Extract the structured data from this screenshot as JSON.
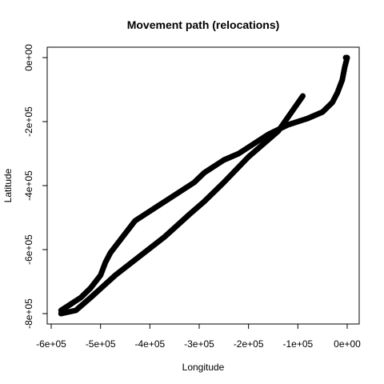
{
  "chart_data": {
    "type": "line",
    "title": "Movement path (relocations)",
    "xlabel": "Longitude",
    "ylabel": "Latitude",
    "xlim": [
      -600000,
      0
    ],
    "ylim": [
      -800000,
      0
    ],
    "x_ticks": [
      {
        "value": -600000,
        "label": "-6e+05"
      },
      {
        "value": -500000,
        "label": "-5e+05"
      },
      {
        "value": -400000,
        "label": "-4e+05"
      },
      {
        "value": -300000,
        "label": "-3e+05"
      },
      {
        "value": -200000,
        "label": "-2e+05"
      },
      {
        "value": -100000,
        "label": "-1e+05"
      },
      {
        "value": 0,
        "label": "0e+00"
      }
    ],
    "y_ticks": [
      {
        "value": 0,
        "label": "0e+00"
      },
      {
        "value": -200000,
        "label": "-2e+05"
      },
      {
        "value": -400000,
        "label": "-4e+05"
      },
      {
        "value": -600000,
        "label": "-6e+05"
      },
      {
        "value": -800000,
        "label": "-8e+05"
      }
    ],
    "grid": false,
    "legend": "none",
    "line_color": "#000000",
    "series": [
      {
        "x": [
          -90000,
          -140000,
          -200000,
          -250000,
          -290000,
          -320000,
          -370000,
          -420000,
          -470000,
          -520000,
          -550000,
          -580000
        ],
        "y": [
          -120000,
          -230000,
          -310000,
          -390000,
          -450000,
          -490000,
          -560000,
          -620000,
          -680000,
          -750000,
          -790000,
          -800000
        ]
      },
      {
        "x": [
          -580000,
          -560000,
          -540000,
          -520000,
          -500000,
          -490000,
          -480000,
          -460000,
          -430000,
          -400000,
          -370000,
          -340000,
          -310000,
          -290000,
          -270000,
          -250000,
          -220000,
          -190000,
          -160000,
          -120000,
          -80000,
          -50000,
          -30000,
          -20000,
          -10000,
          -5000,
          0,
          -3000
        ],
        "y": [
          -790000,
          -770000,
          -750000,
          -720000,
          -680000,
          -640000,
          -610000,
          -570000,
          -510000,
          -480000,
          -450000,
          -420000,
          -390000,
          -360000,
          -340000,
          -320000,
          -300000,
          -270000,
          -240000,
          -210000,
          -190000,
          -170000,
          -140000,
          -110000,
          -70000,
          -30000,
          0,
          0
        ]
      }
    ]
  }
}
